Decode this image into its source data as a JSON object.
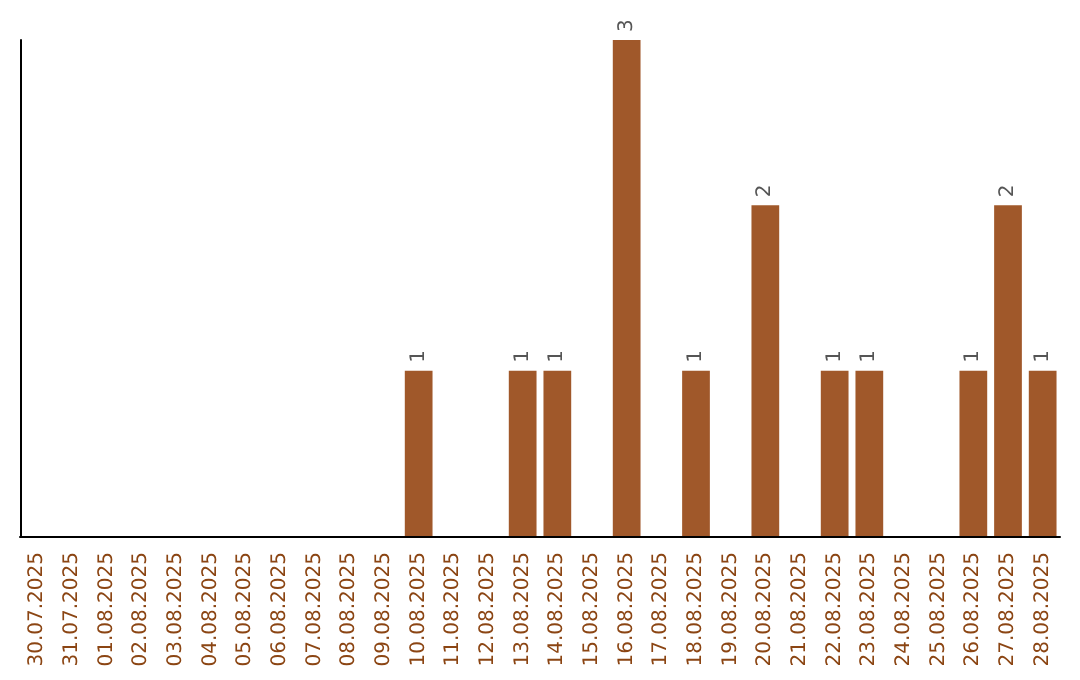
{
  "chart_data": {
    "type": "bar",
    "categories": [
      "30.07.2025",
      "31.07.2025",
      "01.08.2025",
      "02.08.2025",
      "03.08.2025",
      "04.08.2025",
      "05.08.2025",
      "06.08.2025",
      "07.08.2025",
      "08.08.2025",
      "09.08.2025",
      "10.08.2025",
      "11.08.2025",
      "12.08.2025",
      "13.08.2025",
      "14.08.2025",
      "15.08.2025",
      "16.08.2025",
      "17.08.2025",
      "18.08.2025",
      "19.08.2025",
      "20.08.2025",
      "21.08.2025",
      "22.08.2025",
      "23.08.2025",
      "24.08.2025",
      "25.08.2025",
      "26.08.2025",
      "27.08.2025",
      "28.08.2025"
    ],
    "values": [
      0,
      0,
      0,
      0,
      0,
      0,
      0,
      0,
      0,
      0,
      0,
      1,
      0,
      0,
      1,
      1,
      0,
      3,
      0,
      1,
      0,
      2,
      0,
      1,
      1,
      0,
      0,
      1,
      2,
      1
    ],
    "value_labels": [
      null,
      null,
      null,
      null,
      null,
      null,
      null,
      null,
      null,
      null,
      null,
      "1",
      null,
      null,
      "1",
      "1",
      null,
      "3",
      null,
      "1",
      null,
      "2",
      null,
      "1",
      "1",
      null,
      null,
      "1",
      "2",
      "1"
    ],
    "color": "#a0582a",
    "tick_labels": "x"
  }
}
